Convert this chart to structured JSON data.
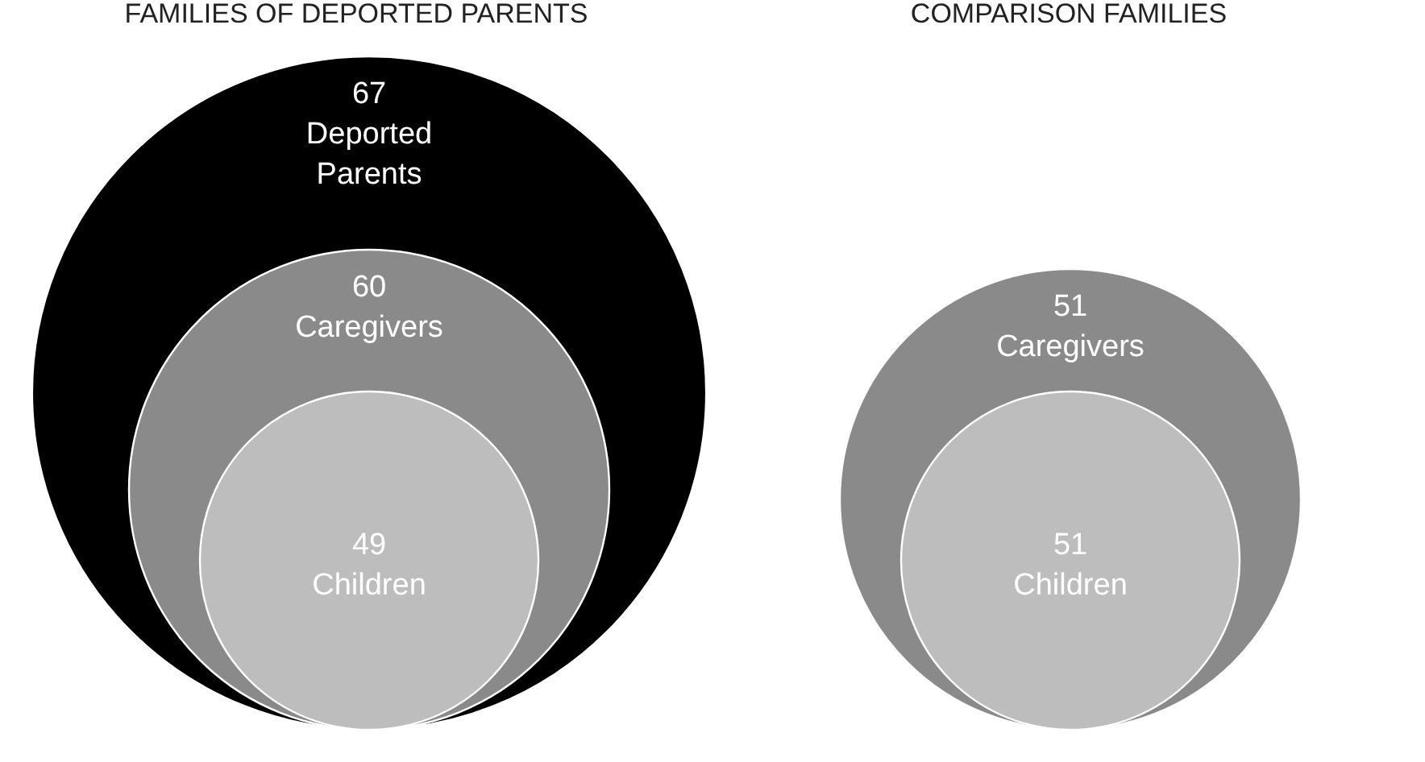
{
  "chart_data": [
    {
      "type": "other",
      "title": "FAMILIES OF DEPORTED PARENTS",
      "categories": [
        "Deported Parents",
        "Caregivers",
        "Children"
      ],
      "values": [
        67,
        60,
        49
      ],
      "colors": [
        "#000000",
        "#8a8a8a",
        "#bdbdbd"
      ],
      "data_labels": true
    },
    {
      "type": "other",
      "title": "COMPARISON FAMILIES",
      "categories": [
        "Caregivers",
        "Children"
      ],
      "values": [
        51,
        51
      ],
      "colors": [
        "#8a8a8a",
        "#bdbdbd"
      ],
      "data_labels": true
    }
  ]
}
